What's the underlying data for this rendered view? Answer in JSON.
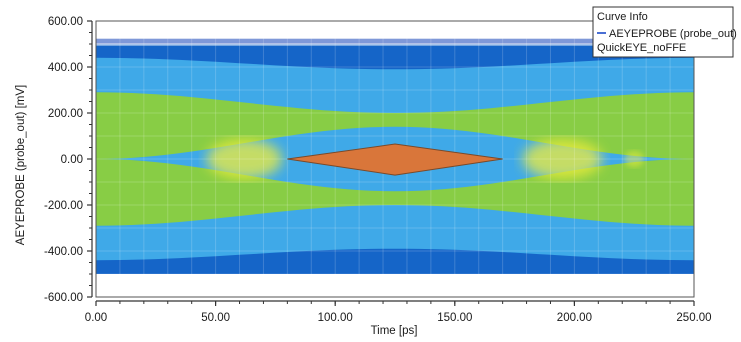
{
  "chart_data": {
    "type": "heatmap",
    "xlabel": "Time [ps]",
    "ylabel": "AEYEPROBE (probe_out) [mV]",
    "xlim": [
      0,
      250
    ],
    "ylim": [
      -600,
      600
    ],
    "x_ticks": [
      "0.00",
      "50.00",
      "100.00",
      "150.00",
      "200.00",
      "250.00"
    ],
    "y_ticks": [
      "600.00",
      "400.00",
      "200.00",
      "0.00",
      "-200.00",
      "-400.00",
      "-600.00"
    ],
    "grid": true,
    "legend_placement": "top-right",
    "legend": {
      "title": "Curve Info",
      "entries": [
        {
          "label": "AEYEPROBE (probe_out)",
          "color": "#4a6fd4"
        },
        {
          "label": "QuickEYE_noFFE"
        }
      ]
    },
    "eye_diagram": {
      "signal_envelope_mV": [
        -500,
        500
      ],
      "top_rail_mV": 510,
      "eye_mask": {
        "points": [
          [
            80,
            0
          ],
          [
            125,
            65
          ],
          [
            170,
            0
          ],
          [
            125,
            -70
          ]
        ],
        "fill": "#d9763a"
      }
    },
    "colors": {
      "density_low": "#1565c8",
      "density_mid_low": "#3fa9e8",
      "density_mid": "#8ccf3c",
      "density_high": "#f2ee3a",
      "rail": "#7f98d8"
    }
  }
}
